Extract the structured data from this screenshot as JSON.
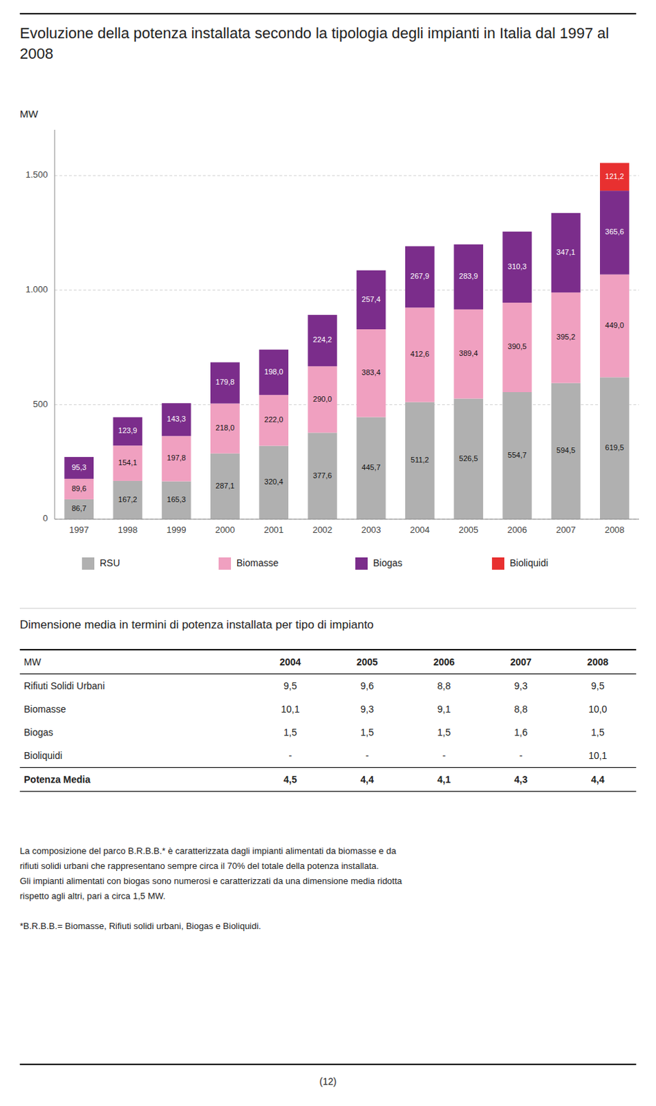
{
  "chart_data": {
    "type": "bar",
    "stacked": true,
    "title": "Evoluzione della potenza installata secondo la tipologia degli impianti in Italia dal 1997 al 2008",
    "ylabel": "MW",
    "categories": [
      "1997",
      "1998",
      "1999",
      "2000",
      "2001",
      "2002",
      "2003",
      "2004",
      "2005",
      "2006",
      "2007",
      "2008"
    ],
    "series": [
      {
        "name": "RSU",
        "color": "#b0b0b0",
        "values": [
          86.7,
          167.2,
          165.3,
          287.1,
          320.4,
          377.6,
          445.7,
          511.2,
          526.5,
          554.7,
          594.5,
          619.5
        ],
        "value_labels": [
          "86,7",
          "167,2",
          "165,3",
          "287,1",
          "320,4",
          "377,6",
          "445,7",
          "511,2",
          "526,5",
          "554,7",
          "594,5",
          "619,5"
        ]
      },
      {
        "name": "Biomasse",
        "color": "#f0a0c0",
        "values": [
          89.6,
          154.1,
          197.8,
          218.0,
          222.0,
          290.0,
          383.4,
          412.6,
          389.4,
          390.5,
          395.2,
          449.0
        ],
        "value_labels": [
          "89,6",
          "154,1",
          "197,8",
          "218,0",
          "222,0",
          "290,0",
          "383,4",
          "412,6",
          "389,4",
          "390,5",
          "395,2",
          "449,0"
        ]
      },
      {
        "name": "Biogas",
        "color": "#7b2d8b",
        "values": [
          95.3,
          123.9,
          143.3,
          179.8,
          198.0,
          224.2,
          257.4,
          267.9,
          283.9,
          310.3,
          347.1,
          365.6
        ],
        "value_labels": [
          "95,3",
          "123,9",
          "143,3",
          "179,8",
          "198,0",
          "224,2",
          "257,4",
          "267,9",
          "283,9",
          "310,3",
          "347,1",
          "365,6"
        ]
      },
      {
        "name": "Bioliquidi",
        "color": "#e83030",
        "values": [
          0.0,
          0.0,
          0.0,
          0.0,
          0.0,
          0.0,
          0.0,
          0.0,
          0.0,
          0.0,
          0.0,
          121.2
        ],
        "value_labels": [
          null,
          null,
          null,
          null,
          null,
          null,
          null,
          null,
          null,
          null,
          null,
          "121,2"
        ]
      }
    ],
    "ylim": [
      0,
      1700
    ],
    "yticks": [
      0,
      500,
      {
        "value": 1000,
        "label": "1.000"
      },
      {
        "value": 1500,
        "label": "1.500"
      }
    ],
    "grid": true,
    "legend": "bottom",
    "data_labels": true
  },
  "table": {
    "title": "Dimensione media in termini di potenza installata per tipo di impianto",
    "columns": [
      "MW",
      "2004",
      "2005",
      "2006",
      "2007",
      "2008"
    ],
    "rows": [
      [
        "Rifiuti Solidi Urbani",
        "9,5",
        "9,6",
        "8,8",
        "9,3",
        "9,5"
      ],
      [
        "Biomasse",
        "10,1",
        "9,3",
        "9,1",
        "8,8",
        "10,0"
      ],
      [
        "Biogas",
        "1,5",
        "1,5",
        "1,5",
        "1,6",
        "1,5"
      ],
      [
        "Bioliquidi",
        "-",
        "-",
        "-",
        "-",
        "10,1"
      ],
      [
        "Potenza Media",
        "4,5",
        "4,4",
        "4,1",
        "4,3",
        "4,4"
      ]
    ]
  },
  "footnotes": [
    "La composizione del parco B.R.B.B.* è caratterizzata dagli impianti alimentati da biomasse e da",
    "rifiuti solidi urbani che rappresentano sempre circa il 70% del totale della potenza installata.",
    "Gli impianti alimentati con biogas sono numerosi e caratterizzati da una dimensione media ridotta",
    "rispetto agli altri, pari a circa 1,5 MW.",
    "*B.R.B.B.= Biomasse, Rifiuti solidi urbani, Biogas e Bioliquidi."
  ],
  "page_number": "(12)"
}
